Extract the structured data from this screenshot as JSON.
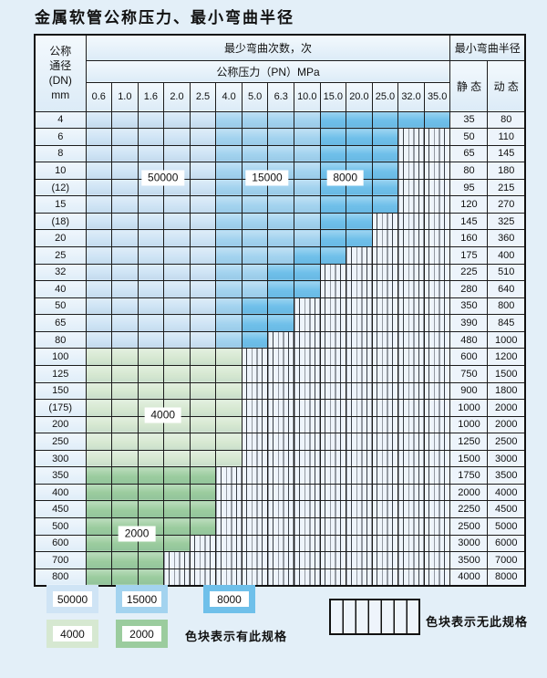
{
  "title": "金属软管公称压力、最小弯曲半径",
  "chart_data": {
    "type": "table",
    "header": {
      "dn_lines": [
        "公称",
        "通径",
        "(DN)",
        "mm"
      ],
      "cycles": "最少弯曲次数，次",
      "pressure": "公称压力（PN）MPa",
      "radius": "最小弯曲半径",
      "static": "静 态",
      "dynamic": "动 态"
    },
    "pressure_columns": [
      "0.6",
      "1.0",
      "1.6",
      "2.0",
      "2.5",
      "4.0",
      "5.0",
      "6.3",
      "10.0",
      "15.0",
      "20.0",
      "25.0",
      "32.0",
      "35.0"
    ],
    "rows": [
      {
        "dn": "4",
        "available_to": "35.0",
        "cycles_band": "blue",
        "static": "35",
        "dynamic": "80"
      },
      {
        "dn": "6",
        "available_to": "25.0",
        "cycles_band": "blue",
        "static": "50",
        "dynamic": "110"
      },
      {
        "dn": "8",
        "available_to": "25.0",
        "cycles_band": "blue",
        "static": "65",
        "dynamic": "145"
      },
      {
        "dn": "10",
        "available_to": "25.0",
        "cycles_band": "blue",
        "static": "80",
        "dynamic": "180"
      },
      {
        "dn": "(12)",
        "available_to": "25.0",
        "cycles_band": "blue",
        "static": "95",
        "dynamic": "215"
      },
      {
        "dn": "15",
        "available_to": "25.0",
        "cycles_band": "blue",
        "static": "120",
        "dynamic": "270"
      },
      {
        "dn": "(18)",
        "available_to": "20.0",
        "cycles_band": "blue",
        "static": "145",
        "dynamic": "325"
      },
      {
        "dn": "20",
        "available_to": "20.0",
        "cycles_band": "blue",
        "static": "160",
        "dynamic": "360"
      },
      {
        "dn": "25",
        "available_to": "15.0",
        "cycles_band": "blue",
        "static": "175",
        "dynamic": "400"
      },
      {
        "dn": "32",
        "available_to": "10.0",
        "cycles_band": "blue",
        "static": "225",
        "dynamic": "510"
      },
      {
        "dn": "40",
        "available_to": "10.0",
        "cycles_band": "blue",
        "static": "280",
        "dynamic": "640"
      },
      {
        "dn": "50",
        "available_to": "6.3",
        "cycles_band": "blue",
        "static": "350",
        "dynamic": "800"
      },
      {
        "dn": "65",
        "available_to": "6.3",
        "cycles_band": "blue",
        "static": "390",
        "dynamic": "845"
      },
      {
        "dn": "80",
        "available_to": "5.0",
        "cycles_band": "blue",
        "static": "480",
        "dynamic": "1000"
      },
      {
        "dn": "100",
        "available_to": "4.0",
        "cycles_band": "green_4000",
        "static": "600",
        "dynamic": "1200"
      },
      {
        "dn": "125",
        "available_to": "4.0",
        "cycles_band": "green_4000",
        "static": "750",
        "dynamic": "1500"
      },
      {
        "dn": "150",
        "available_to": "4.0",
        "cycles_band": "green_4000",
        "static": "900",
        "dynamic": "1800"
      },
      {
        "dn": "(175)",
        "available_to": "4.0",
        "cycles_band": "green_4000",
        "static": "1000",
        "dynamic": "2000"
      },
      {
        "dn": "200",
        "available_to": "4.0",
        "cycles_band": "green_4000",
        "static": "1000",
        "dynamic": "2000"
      },
      {
        "dn": "250",
        "available_to": "4.0",
        "cycles_band": "green_4000",
        "static": "1250",
        "dynamic": "2500"
      },
      {
        "dn": "300",
        "available_to": "4.0",
        "cycles_band": "green_4000",
        "static": "1500",
        "dynamic": "3000"
      },
      {
        "dn": "350",
        "available_to": "2.5",
        "cycles_band": "green_2000",
        "static": "1750",
        "dynamic": "3500"
      },
      {
        "dn": "400",
        "available_to": "2.5",
        "cycles_band": "green_2000",
        "static": "2000",
        "dynamic": "4000"
      },
      {
        "dn": "450",
        "available_to": "2.5",
        "cycles_band": "green_2000",
        "static": "2250",
        "dynamic": "4500"
      },
      {
        "dn": "500",
        "available_to": "2.5",
        "cycles_band": "green_2000",
        "static": "2500",
        "dynamic": "5000"
      },
      {
        "dn": "600",
        "available_to": "2.0",
        "cycles_band": "green_2000",
        "static": "3000",
        "dynamic": "6000"
      },
      {
        "dn": "700",
        "available_to": "1.6",
        "cycles_band": "green_2000",
        "static": "3500",
        "dynamic": "7000"
      },
      {
        "dn": "800",
        "available_to": "1.6",
        "cycles_band": "green_2000",
        "static": "4000",
        "dynamic": "8000"
      }
    ],
    "cycle_region_labels": [
      {
        "text": "50000",
        "between_rows": [
          "10",
          "(12)"
        ],
        "over_columns": [
          "1.6",
          "2.0"
        ]
      },
      {
        "text": "15000",
        "between_rows": [
          "10",
          "(12)"
        ],
        "over_columns": [
          "5.0",
          "6.3"
        ]
      },
      {
        "text": "8000",
        "between_rows": [
          "10",
          "(12)"
        ],
        "over_columns": [
          "15.0",
          "20.0"
        ]
      },
      {
        "text": "4000",
        "between_rows": [
          "(175)",
          "200"
        ],
        "over_columns": [
          "1.6",
          "2.0"
        ]
      },
      {
        "text": "2000",
        "between_rows": [
          "500",
          "600"
        ],
        "over_columns": [
          "1.0",
          "1.6"
        ]
      }
    ]
  },
  "legend": {
    "items": [
      {
        "label": "50000",
        "color_key": "blue_50000"
      },
      {
        "label": "15000",
        "color_key": "blue_15000"
      },
      {
        "label": "8000",
        "color_key": "blue_8000"
      },
      {
        "label": "4000",
        "color_key": "green_4000"
      },
      {
        "label": "2000",
        "color_key": "green_2000"
      }
    ],
    "has_spec_text": "色块表示有此规格",
    "no_spec_text": "色块表示无此规格"
  },
  "colors": {
    "blue_50000": "#cfe4f5",
    "blue_15000": "#a3d3ef",
    "blue_8000": "#6fc0ea",
    "green_4000": "#d6e8d1",
    "green_2000": "#9bcc9e",
    "empty_cell": "#eef4fb",
    "stripe_line": "#3a4048",
    "page_bg": "#e3eff8"
  }
}
